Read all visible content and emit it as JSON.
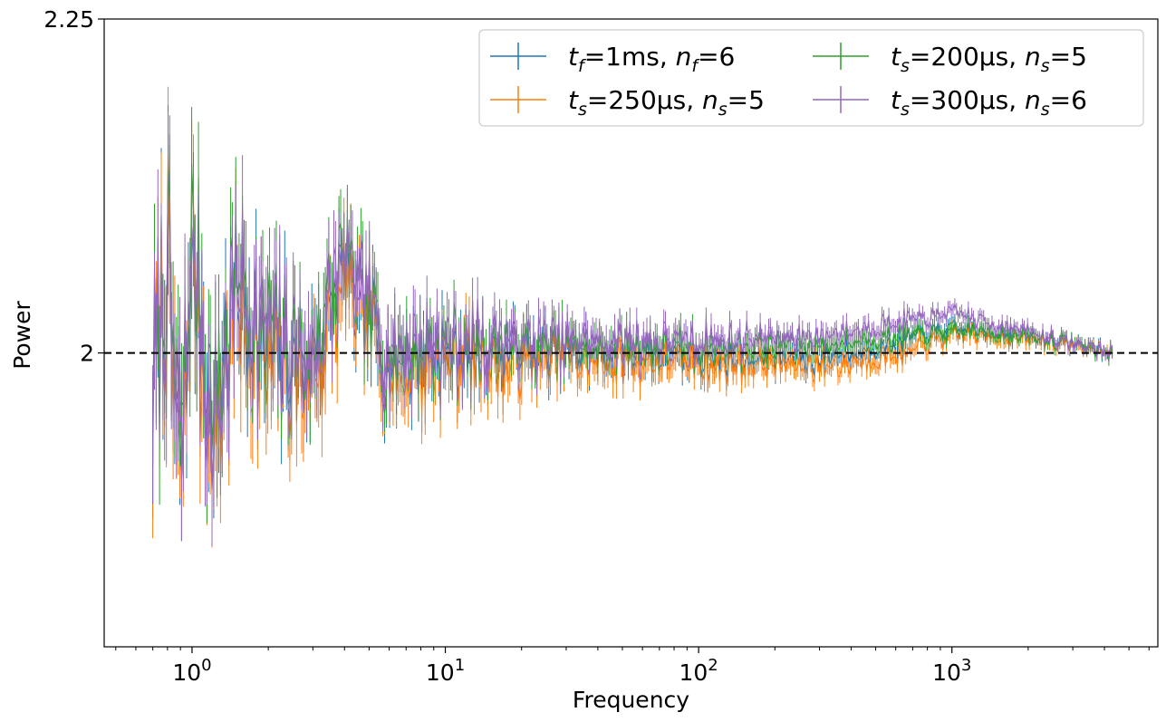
{
  "chart_data": {
    "type": "line",
    "xscale": "log",
    "title": "",
    "xlabel": "Frequency",
    "ylabel": "Power",
    "xlim": [
      0.45,
      6500
    ],
    "ylim": [
      1.78,
      2.25
    ],
    "xticks": [
      {
        "base": "10",
        "exp": "0",
        "value": 1
      },
      {
        "base": "10",
        "exp": "1",
        "value": 10
      },
      {
        "base": "10",
        "exp": "2",
        "value": 100
      },
      {
        "base": "10",
        "exp": "3",
        "value": 1000
      }
    ],
    "yticks": [
      {
        "label": "2",
        "value": 2.0
      },
      {
        "label": "2.25",
        "value": 2.25
      }
    ],
    "reference_line": {
      "value": 2.0,
      "style": "dashed",
      "color": "#000000"
    },
    "legend": {
      "placement": "top-right",
      "columns": 2
    },
    "series": [
      {
        "name": "t_f=1ms, n_f=6",
        "var": "t",
        "sub": "f",
        "val": "=1ms, ",
        "var2": "n",
        "sub2": "f",
        "val2": "=6",
        "color": "#1f77b4",
        "bias": 0.0,
        "amp": 1.0,
        "seed": 11,
        "anchors": [
          [
            0.7,
            1.985
          ],
          [
            0.8,
            2.06
          ],
          [
            0.9,
            1.9
          ],
          [
            1.0,
            2.08
          ],
          [
            1.2,
            1.93
          ],
          [
            1.5,
            2.05
          ],
          [
            2.0,
            2.0
          ],
          [
            3.0,
            1.99
          ],
          [
            4.0,
            2.06
          ],
          [
            6.0,
            1.99
          ],
          [
            10.0,
            2.0
          ],
          [
            30.0,
            2.0
          ],
          [
            100.0,
            1.995
          ],
          [
            300.0,
            1.995
          ],
          [
            600.0,
            2.008
          ],
          [
            1000.0,
            2.018
          ],
          [
            1500.0,
            2.015
          ],
          [
            2500.0,
            2.01
          ],
          [
            4300.0,
            2.0
          ]
        ]
      },
      {
        "name": "t_s=250μs, n_s=5",
        "var": "t",
        "sub": "s",
        "val": "=250μs, ",
        "var2": "n",
        "sub2": "s",
        "val2": "=5",
        "color": "#ff7f0e",
        "bias": -0.006,
        "amp": 1.05,
        "seed": 23,
        "anchors": [
          [
            0.7,
            1.975
          ],
          [
            0.8,
            2.055
          ],
          [
            0.9,
            1.92
          ],
          [
            1.0,
            2.07
          ],
          [
            1.2,
            1.92
          ],
          [
            1.5,
            2.04
          ],
          [
            2.0,
            1.99
          ],
          [
            3.0,
            1.98
          ],
          [
            4.0,
            2.05
          ],
          [
            6.0,
            1.985
          ],
          [
            10.0,
            1.995
          ],
          [
            30.0,
            1.995
          ],
          [
            100.0,
            1.992
          ],
          [
            300.0,
            1.99
          ],
          [
            600.0,
            1.998
          ],
          [
            1000.0,
            2.012
          ],
          [
            1500.0,
            2.013
          ],
          [
            2500.0,
            2.008
          ],
          [
            4300.0,
            2.0
          ]
        ]
      },
      {
        "name": "t_s=200μs, n_s=5",
        "var": "t",
        "sub": "s",
        "val": "=200μs, ",
        "var2": "n",
        "sub2": "s",
        "val2": "=5",
        "color": "#2ca02c",
        "bias": 0.004,
        "amp": 0.95,
        "seed": 37,
        "anchors": [
          [
            0.7,
            1.99
          ],
          [
            0.8,
            2.07
          ],
          [
            0.9,
            1.93
          ],
          [
            1.0,
            2.09
          ],
          [
            1.2,
            1.95
          ],
          [
            1.5,
            2.06
          ],
          [
            2.0,
            2.01
          ],
          [
            3.0,
            2.0
          ],
          [
            4.0,
            2.07
          ],
          [
            6.0,
            2.0
          ],
          [
            10.0,
            2.005
          ],
          [
            30.0,
            2.005
          ],
          [
            100.0,
            2.005
          ],
          [
            300.0,
            2.005
          ],
          [
            600.0,
            2.012
          ],
          [
            1000.0,
            2.016
          ],
          [
            1500.0,
            2.016
          ],
          [
            2500.0,
            2.01
          ],
          [
            4300.0,
            2.0
          ]
        ]
      },
      {
        "name": "t_s=300μs, n_s=6",
        "var": "t",
        "sub": "s",
        "val": "=300μs, ",
        "var2": "n",
        "sub2": "s",
        "val2": "=6",
        "color": "#9467bd",
        "bias": 0.006,
        "amp": 1.0,
        "seed": 53,
        "anchors": [
          [
            0.7,
            1.995
          ],
          [
            0.8,
            2.065
          ],
          [
            0.9,
            1.93
          ],
          [
            1.0,
            2.085
          ],
          [
            1.2,
            1.94
          ],
          [
            1.5,
            2.055
          ],
          [
            2.0,
            2.01
          ],
          [
            3.0,
            2.0
          ],
          [
            4.0,
            2.07
          ],
          [
            6.0,
            2.0
          ],
          [
            10.0,
            2.008
          ],
          [
            30.0,
            2.008
          ],
          [
            100.0,
            2.01
          ],
          [
            300.0,
            2.012
          ],
          [
            600.0,
            2.022
          ],
          [
            1000.0,
            2.03
          ],
          [
            1500.0,
            2.022
          ],
          [
            2500.0,
            2.012
          ],
          [
            4300.0,
            2.0
          ]
        ]
      }
    ]
  }
}
